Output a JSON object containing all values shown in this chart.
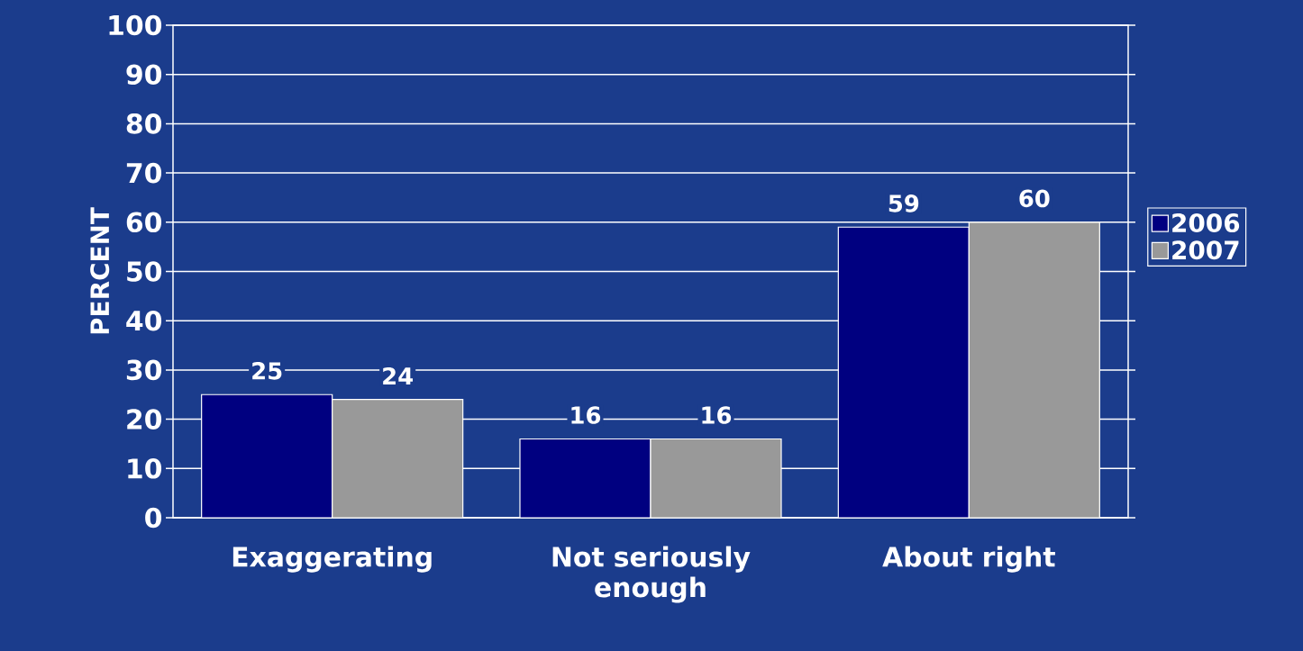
{
  "chart_data": {
    "type": "bar",
    "ylabel": "PERCENT",
    "categories": [
      "Exaggerating",
      "Not seriously enough",
      "About right"
    ],
    "series": [
      {
        "name": "2006",
        "color": "#000080",
        "values": [
          25,
          16,
          59
        ]
      },
      {
        "name": "2007",
        "color": "#999999",
        "values": [
          24,
          16,
          60
        ]
      }
    ],
    "ylim": [
      0,
      100
    ],
    "yticks": [
      0,
      10,
      20,
      30,
      40,
      50,
      60,
      70,
      80,
      90,
      100
    ],
    "grid": "y",
    "legend": "right",
    "data_labels": true
  }
}
